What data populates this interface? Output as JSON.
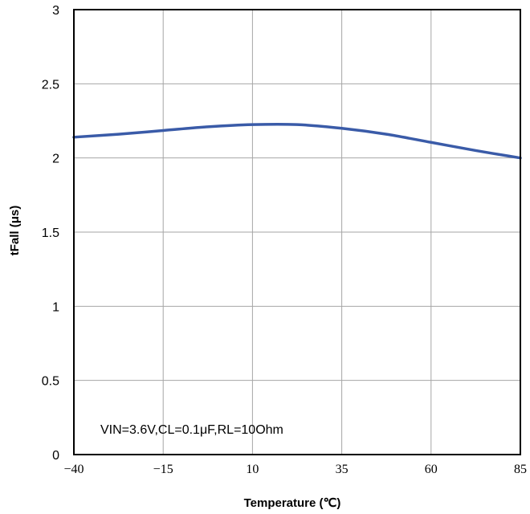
{
  "chart_data": {
    "type": "line",
    "title": "",
    "xlabel": "Temperature (℃)",
    "ylabel": "tFall (μs)",
    "xlim": [
      -40,
      85
    ],
    "ylim": [
      0,
      3
    ],
    "xticks": [
      -40,
      -15,
      10,
      35,
      60,
      85
    ],
    "xtick_labels": [
      "−40",
      "−15",
      "10",
      "35",
      "60",
      "85"
    ],
    "yticks": [
      0,
      0.5,
      1,
      1.5,
      2,
      2.5,
      3
    ],
    "ytick_labels": [
      "0",
      "0.5",
      "1",
      "1.5",
      "2",
      "2.5",
      "3"
    ],
    "grid": true,
    "annotation": "VIN=3.6V,CL=0.1μF,RL=10Ohm",
    "series": [
      {
        "color": "#3a5ba8",
        "x": [
          -40,
          -27.5,
          -15,
          -2.5,
          10,
          22.5,
          35,
          47.5,
          60,
          72.5,
          85
        ],
        "y": [
          2.14,
          2.16,
          2.185,
          2.21,
          2.225,
          2.225,
          2.2,
          2.16,
          2.105,
          2.05,
          2.0
        ]
      }
    ]
  }
}
